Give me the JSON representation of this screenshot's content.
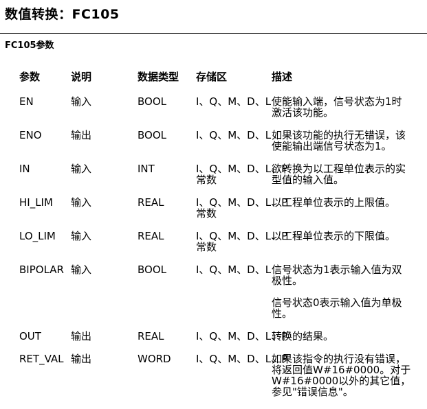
{
  "header": {
    "title": "数值转换：FC105"
  },
  "section": {
    "label": "FC105参数"
  },
  "table": {
    "headers": [
      "参数",
      "说明",
      "数据类型",
      "存储区",
      "描述"
    ],
    "rows": [
      {
        "param": "EN",
        "decl": "输入",
        "type": "BOOL",
        "memory": "I、Q、M、D、L",
        "desc": "使能输入端，信号状态为1时\n激活该功能。"
      },
      {
        "param": "ENO",
        "decl": "输出",
        "type": "BOOL",
        "memory": "I、Q、M、D、L",
        "desc": "如果该功能的执行无错误，该\n使能输出端信号状态为1。"
      },
      {
        "param": "IN",
        "decl": "输入",
        "type": "INT",
        "memory": "I、Q、M、D、L、P\n常数",
        "desc": "欲转换为以工程单位表示的实\n型值的输入值。"
      },
      {
        "param": "HI_LIM",
        "decl": "输入",
        "type": "REAL",
        "memory": "I、Q、M、D、L、P\n常数",
        "desc": "以工程单位表示的上限值。"
      },
      {
        "param": "LO_LIM",
        "decl": "输入",
        "type": "REAL",
        "memory": "I、Q、M、D、L、P\n常数",
        "desc": "以工程单位表示的下限值。"
      },
      {
        "param": "BIPOLAR",
        "decl": "输入",
        "type": "BOOL",
        "memory": "I、Q、M、D、L",
        "desc": "信号状态为1表示输入值为双\n极性。\n\n信号状态0表示输入值为单极\n性。"
      },
      {
        "param": "OUT",
        "decl": "输出",
        "type": "REAL",
        "memory": "I、Q、M、D、L、P",
        "desc": "转换的结果。"
      },
      {
        "param": "RET_VAL",
        "decl": "输出",
        "type": "WORD",
        "memory": "I、Q、M、D、L、P",
        "desc": "如果该指令的执行没有错误，\n将返回值W#16#0000。对于\nW#16#0000以外的其它值，\n参见\"错误信息\"。"
      }
    ]
  }
}
